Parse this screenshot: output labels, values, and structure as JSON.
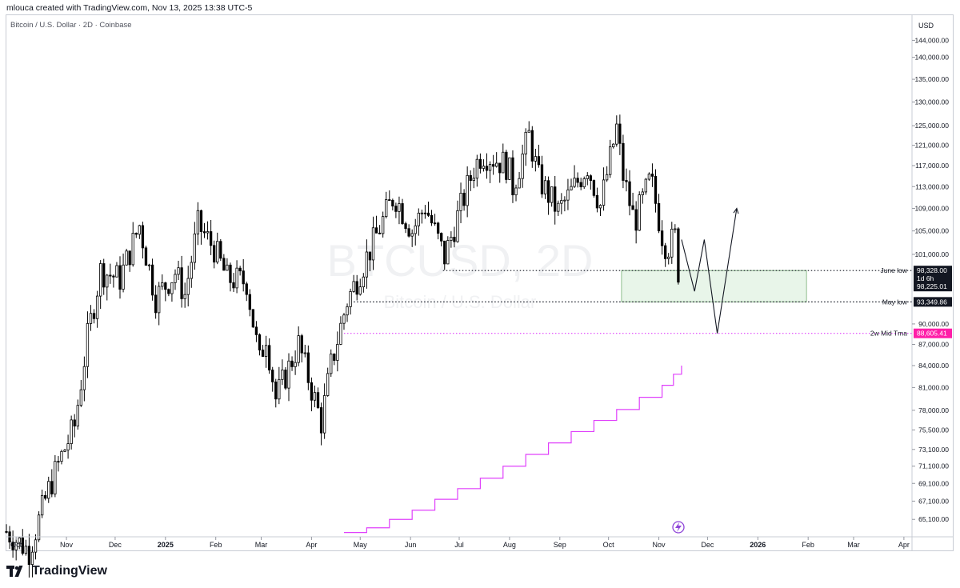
{
  "header": {
    "credit": "mlouca created with TradingView.com, Nov 13, 2025 13:38 UTC-5"
  },
  "symbol_line": "Bitcoin / U.S. Dollar · 2D · Coinbase",
  "watermark": {
    "ticker": "BTCUSD, 2D",
    "name": "Bitcoin / U.S. Dollar"
  },
  "footer": {
    "brand": "TradingView"
  },
  "colors": {
    "up": "#ffffff",
    "down": "#000000",
    "wick": "#000000",
    "tma": "#e040fb",
    "zone_fill": "#e8f5e9",
    "zone_border": "#8fbf8f",
    "tma_badge": "#ff1ea8"
  },
  "chart_data": {
    "type": "candlestick",
    "title": "Bitcoin / U.S. Dollar · 2D · Coinbase",
    "currency": "USD",
    "y_scale": "log",
    "ylim": [
      63500,
      146000
    ],
    "y_ticks": [
      {
        "value": 144000,
        "label": "144,000.00"
      },
      {
        "value": 140000,
        "label": "140,000.00"
      },
      {
        "value": 135000,
        "label": "135,000.00"
      },
      {
        "value": 130000,
        "label": "130,000.00"
      },
      {
        "value": 125000,
        "label": "125,000.00"
      },
      {
        "value": 121000,
        "label": "121,000.00"
      },
      {
        "value": 117000,
        "label": "117,000.00"
      },
      {
        "value": 113000,
        "label": "113,000.00"
      },
      {
        "value": 109000,
        "label": "109,000.00"
      },
      {
        "value": 105000,
        "label": "105,000.00"
      },
      {
        "value": 101000,
        "label": "101,000.00"
      },
      {
        "value": 90000,
        "label": "90,000.00"
      },
      {
        "value": 87000,
        "label": "87,000.00"
      },
      {
        "value": 84000,
        "label": "84,000.00"
      },
      {
        "value": 81000,
        "label": "81,000.00"
      },
      {
        "value": 78000,
        "label": "78,000.00"
      },
      {
        "value": 75500,
        "label": "75,500.00"
      },
      {
        "value": 73100,
        "label": "73,100.00"
      },
      {
        "value": 71100,
        "label": "71,100.00"
      },
      {
        "value": 69100,
        "label": "69,100.00"
      },
      {
        "value": 67100,
        "label": "67,100.00"
      },
      {
        "value": 65100,
        "label": "65,100.00"
      }
    ],
    "x_ticks": [
      {
        "date": "2024-10-01",
        "label": "Oct"
      },
      {
        "date": "2024-11-01",
        "label": "Nov"
      },
      {
        "date": "2024-12-01",
        "label": "Dec"
      },
      {
        "date": "2025-01-01",
        "label": "2025",
        "bold": true
      },
      {
        "date": "2025-02-01",
        "label": "Feb"
      },
      {
        "date": "2025-03-01",
        "label": "Mar"
      },
      {
        "date": "2025-04-01",
        "label": "Apr"
      },
      {
        "date": "2025-05-01",
        "label": "May"
      },
      {
        "date": "2025-06-01",
        "label": "Jun"
      },
      {
        "date": "2025-07-01",
        "label": "Jul"
      },
      {
        "date": "2025-08-01",
        "label": "Aug"
      },
      {
        "date": "2025-09-01",
        "label": "Sep"
      },
      {
        "date": "2025-10-01",
        "label": "Oct"
      },
      {
        "date": "2025-11-01",
        "label": "Nov"
      },
      {
        "date": "2025-12-01",
        "label": "Dec"
      },
      {
        "date": "2026-01-01",
        "label": "2026",
        "bold": true
      },
      {
        "date": "2026-02-01",
        "label": "Feb"
      },
      {
        "date": "2026-03-01",
        "label": "Mar"
      },
      {
        "date": "2026-04-01",
        "label": "Apr"
      }
    ],
    "xlim": [
      "2024-09-25",
      "2026-04-05"
    ],
    "price_path": [
      [
        "2024-09-25",
        63800
      ],
      [
        "2024-10-09",
        61800
      ],
      [
        "2024-10-21",
        68400
      ],
      [
        "2024-10-29",
        72300
      ],
      [
        "2024-11-06",
        76000
      ],
      [
        "2024-11-14",
        88000
      ],
      [
        "2024-11-22",
        98300
      ],
      [
        "2024-12-04",
        97000
      ],
      [
        "2024-12-16",
        106000
      ],
      [
        "2024-12-26",
        94000
      ],
      [
        "2025-01-07",
        98000
      ],
      [
        "2025-01-13",
        94500
      ],
      [
        "2025-01-21",
        106000
      ],
      [
        "2025-01-31",
        102000
      ],
      [
        "2025-02-08",
        97000
      ],
      [
        "2025-02-20",
        96500
      ],
      [
        "2025-02-28",
        84500
      ],
      [
        "2025-03-04",
        88500
      ],
      [
        "2025-03-10",
        79500
      ],
      [
        "2025-03-24",
        87000
      ],
      [
        "2025-04-07",
        76500
      ],
      [
        "2025-04-13",
        84000
      ],
      [
        "2025-04-23",
        93500
      ],
      [
        "2025-05-09",
        103000
      ],
      [
        "2025-05-22",
        111500
      ],
      [
        "2025-06-02",
        105000
      ],
      [
        "2025-06-10",
        109500
      ],
      [
        "2025-06-22",
        100500
      ],
      [
        "2025-06-30",
        107500
      ],
      [
        "2025-07-10",
        116500
      ],
      [
        "2025-07-15",
        119500
      ],
      [
        "2025-07-31",
        117000
      ],
      [
        "2025-08-03",
        113000
      ],
      [
        "2025-08-13",
        123000
      ],
      [
        "2025-08-19",
        114500
      ],
      [
        "2025-08-31",
        108500
      ],
      [
        "2025-09-06",
        111000
      ],
      [
        "2025-09-18",
        117000
      ],
      [
        "2025-09-26",
        109500
      ],
      [
        "2025-10-06",
        124500
      ],
      [
        "2025-10-10",
        115000
      ],
      [
        "2025-10-17",
        106500
      ],
      [
        "2025-10-27",
        114500
      ],
      [
        "2025-11-04",
        103000
      ],
      [
        "2025-11-07",
        102500
      ],
      [
        "2025-11-11",
        104000
      ],
      [
        "2025-11-13",
        98300
      ]
    ],
    "annotations": {
      "june_low": {
        "label": "June low",
        "value": 98328.0,
        "price_label": "98,328.00",
        "start": "2025-06-21"
      },
      "may_low": {
        "label": "May low",
        "value": 93349.86,
        "price_label": "93,349.86",
        "start": "2025-04-27"
      },
      "tma": {
        "label": "2w Mid Tma",
        "value": 88605.41,
        "price_label": "88,605.41",
        "start": "2025-04-21"
      },
      "current": {
        "price_label": "98,225.01",
        "countdown": "1d 6h",
        "value": 98225.01
      },
      "zone": {
        "from": "2025-10-09",
        "to": "2026-01-31",
        "top": 98328.0,
        "bottom": 93349.86
      },
      "projection": [
        [
          "2025-11-15",
          103500
        ],
        [
          "2025-11-23",
          95000
        ],
        [
          "2025-11-29",
          103500
        ],
        [
          "2025-12-07",
          88605.41
        ],
        [
          "2025-12-19",
          109000
        ]
      ],
      "tma_steps": [
        [
          "2025-04-21",
          63700
        ],
        [
          "2025-05-05",
          64200
        ],
        [
          "2025-05-19",
          65100
        ],
        [
          "2025-06-02",
          66100
        ],
        [
          "2025-06-16",
          67300
        ],
        [
          "2025-06-30",
          68500
        ],
        [
          "2025-07-14",
          69700
        ],
        [
          "2025-07-28",
          71100
        ],
        [
          "2025-08-11",
          72500
        ],
        [
          "2025-08-25",
          73900
        ],
        [
          "2025-09-08",
          75300
        ],
        [
          "2025-09-22",
          76700
        ],
        [
          "2025-10-06",
          78100
        ],
        [
          "2025-10-20",
          79700
        ],
        [
          "2025-11-03",
          81300
        ],
        [
          "2025-11-10",
          82800
        ],
        [
          "2025-11-15",
          84000
        ]
      ]
    }
  }
}
